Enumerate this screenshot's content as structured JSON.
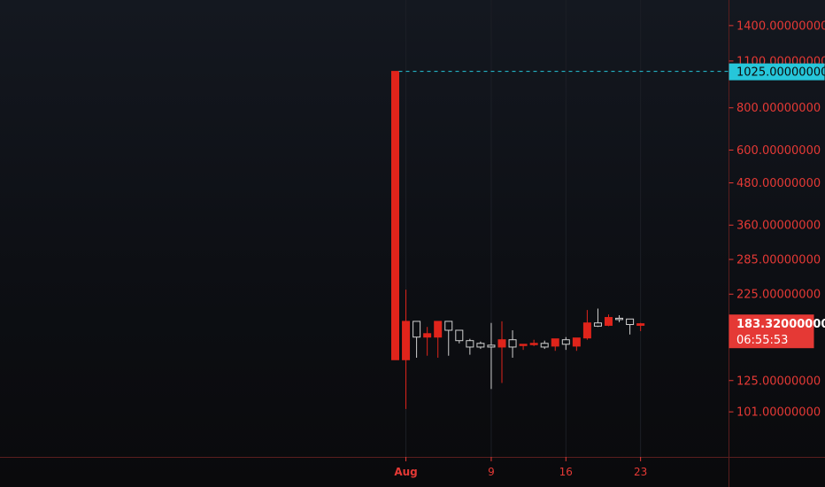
{
  "chart_data": {
    "type": "candlestick",
    "scale": "log",
    "y_ticks": [
      "1400.00000000",
      "1100.00000000",
      "800.00000000",
      "600.00000000",
      "480.00000000",
      "360.00000000",
      "285.00000000",
      "225.00000000",
      "125.00000000",
      "101.00000000"
    ],
    "x_ticks": [
      "Aug",
      "9",
      "16",
      "23"
    ],
    "horizontal_line": {
      "value": "1025.00000000",
      "color": "#26c6da"
    },
    "last_price": {
      "value": "183.32000000",
      "countdown": "06:55:53",
      "color": "#e53935"
    },
    "ylim": [
      88,
      1550
    ],
    "candles": [
      {
        "date": "Jul 31",
        "open": 1025,
        "close": 144,
        "high": 1025,
        "low": 144
      },
      {
        "date": "Aug 1",
        "open": 187,
        "close": 144,
        "high": 232,
        "low": 103
      },
      {
        "date": "Aug 2",
        "open": 168,
        "close": 187,
        "high": 187,
        "low": 146
      },
      {
        "date": "Aug 3",
        "open": 172,
        "close": 168,
        "high": 180,
        "low": 148
      },
      {
        "date": "Aug 4",
        "open": 187,
        "close": 168,
        "high": 187,
        "low": 146
      },
      {
        "date": "Aug 5",
        "open": 176,
        "close": 187,
        "high": 187,
        "low": 148
      },
      {
        "date": "Aug 6",
        "open": 164,
        "close": 176,
        "high": 176,
        "low": 161
      },
      {
        "date": "Aug 7",
        "open": 157,
        "close": 164,
        "high": 166,
        "low": 149
      },
      {
        "date": "Aug 8",
        "open": 157,
        "close": 161,
        "high": 163,
        "low": 155
      },
      {
        "date": "Aug 9",
        "open": 157,
        "close": 159,
        "high": 185,
        "low": 118
      },
      {
        "date": "Aug 10",
        "open": 165,
        "close": 157,
        "high": 187,
        "low": 123
      },
      {
        "date": "Aug 11",
        "open": 157,
        "close": 165,
        "high": 176,
        "low": 146
      },
      {
        "date": "Aug 12",
        "open": 160,
        "close": 159,
        "high": 160,
        "low": 154
      },
      {
        "date": "Aug 13",
        "open": 161,
        "close": 160,
        "high": 165,
        "low": 158
      },
      {
        "date": "Aug 14",
        "open": 157,
        "close": 161,
        "high": 164,
        "low": 155
      },
      {
        "date": "Aug 15",
        "open": 166,
        "close": 158,
        "high": 166,
        "low": 153
      },
      {
        "date": "Aug 16",
        "open": 160,
        "close": 165,
        "high": 168,
        "low": 154
      },
      {
        "date": "Aug 17",
        "open": 167,
        "close": 158,
        "high": 167,
        "low": 153
      },
      {
        "date": "Aug 18",
        "open": 185,
        "close": 167,
        "high": 202,
        "low": 165
      },
      {
        "date": "Aug 19",
        "open": 181,
        "close": 185,
        "high": 204,
        "low": 180
      },
      {
        "date": "Aug 20",
        "open": 192,
        "close": 182,
        "high": 196,
        "low": 181
      },
      {
        "date": "Aug 21",
        "open": 190,
        "close": 191,
        "high": 195,
        "low": 186
      },
      {
        "date": "Aug 22",
        "open": 183,
        "close": 190,
        "high": 190,
        "low": 171
      },
      {
        "date": "Aug 23",
        "open": 184,
        "close": 182,
        "high": 185,
        "low": 175
      }
    ]
  }
}
